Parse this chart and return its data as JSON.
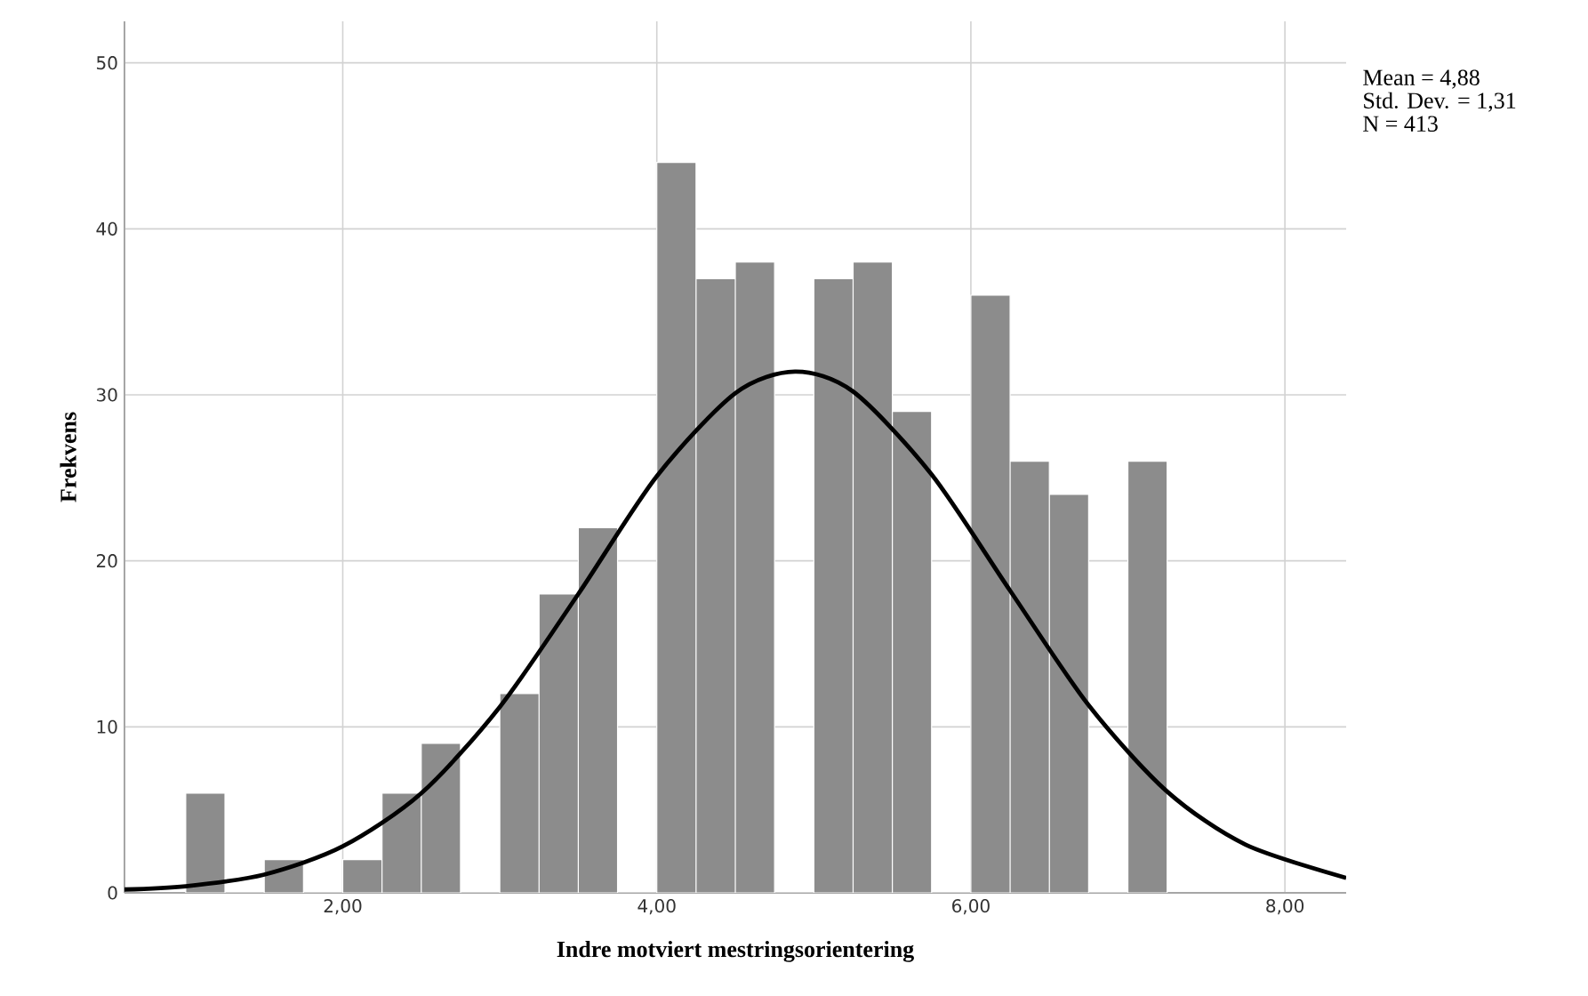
{
  "chart_data": {
    "type": "histogram",
    "xlabel": "Indre motviert mestringsorientering",
    "ylabel": "Frekvens",
    "annotations": [
      "Mean = 4,88",
      "Std. Dev. = 1,31",
      "N = 413"
    ],
    "series": [
      {
        "color": "#8c8c8c",
        "bins": [
          1.0,
          1.25,
          1.5,
          1.75,
          2.0,
          2.25,
          2.5,
          2.75,
          3.0,
          3.25,
          3.5,
          3.75,
          4.0,
          4.25,
          4.5,
          4.75,
          5.0,
          5.25,
          5.5,
          5.75,
          6.0,
          6.25,
          6.5,
          6.75,
          7.0,
          7.25
        ],
        "values": [
          6,
          0,
          2,
          0,
          2,
          6,
          9,
          0,
          12,
          18,
          22,
          0,
          44,
          37,
          38,
          0,
          37,
          38,
          29,
          0,
          36,
          26,
          24,
          0,
          26
        ]
      },
      {
        "type": "line",
        "color": "#000000",
        "x": [
          0.61,
          1.0,
          1.5,
          2.0,
          2.5,
          3.0,
          3.5,
          4.0,
          4.5,
          4.88,
          5.25,
          5.75,
          6.25,
          6.75,
          7.25,
          7.75,
          8.39
        ],
        "values": [
          0.2,
          0.4,
          1.1,
          2.8,
          6.0,
          11.2,
          18.0,
          25.1,
          30.1,
          31.4,
          30.2,
          25.2,
          18.2,
          11.3,
          6.1,
          2.9,
          0.9
        ]
      }
    ],
    "xlim": [
      0.61,
      8.39
    ],
    "ylim": [
      0,
      52.5
    ],
    "xticks": [
      {
        "value": 2,
        "label": "2,00"
      },
      {
        "value": 4,
        "label": "4,00"
      },
      {
        "value": 6,
        "label": "6,00"
      },
      {
        "value": 8,
        "label": "8,00"
      }
    ],
    "yticks": [
      0,
      10,
      20,
      30,
      40,
      50
    ],
    "grid": true
  }
}
